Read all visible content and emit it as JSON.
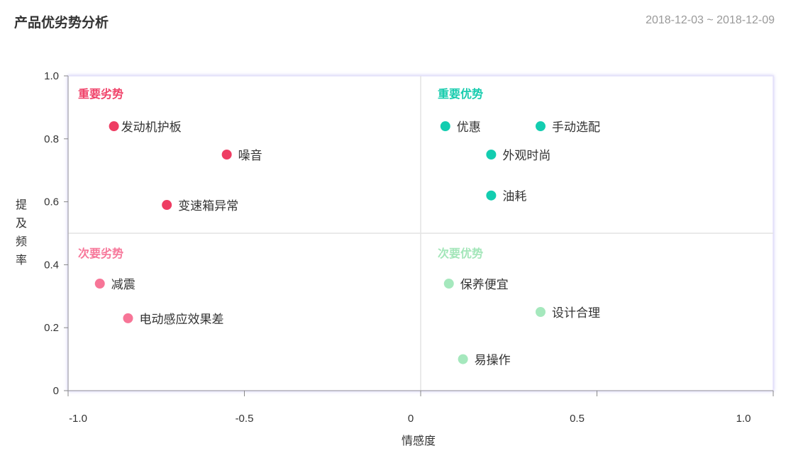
{
  "header": {
    "title": "产品优劣势分析",
    "date_range": "2018-12-03 ~ 2018-12-09"
  },
  "chart_data": {
    "type": "scatter",
    "title": "产品优劣势分析",
    "xlabel": "情感度",
    "ylabel": "提及频率",
    "xlim": [
      -1.0,
      1.0
    ],
    "ylim": [
      0,
      1.0
    ],
    "x_ticks": [
      "-1.0",
      "-0.5",
      "0",
      "0.5",
      "1.0"
    ],
    "y_ticks": [
      "0",
      "0.2",
      "0.4",
      "0.6",
      "0.8",
      "1.0"
    ],
    "grid": false,
    "quadrant_dividers": {
      "x": 0,
      "y": 0.5
    },
    "quadrants": [
      {
        "name": "重要劣势",
        "color": "#f0436a",
        "position": "top-left"
      },
      {
        "name": "重要优势",
        "color": "#17ccae",
        "position": "top-right"
      },
      {
        "name": "次要劣势",
        "color": "#f7779a",
        "position": "bottom-left"
      },
      {
        "name": "次要优势",
        "color": "#a3e6b9",
        "position": "bottom-right"
      }
    ],
    "points": [
      {
        "label": "发动机护板",
        "x": -0.87,
        "y": 0.84,
        "quadrant": 0
      },
      {
        "label": "噪音",
        "x": -0.55,
        "y": 0.75,
        "quadrant": 0
      },
      {
        "label": "变速箱异常",
        "x": -0.72,
        "y": 0.59,
        "quadrant": 0
      },
      {
        "label": "优惠",
        "x": 0.07,
        "y": 0.84,
        "quadrant": 1
      },
      {
        "label": "手动选配",
        "x": 0.34,
        "y": 0.84,
        "quadrant": 1
      },
      {
        "label": "外观时尚",
        "x": 0.2,
        "y": 0.75,
        "quadrant": 1
      },
      {
        "label": "油耗",
        "x": 0.2,
        "y": 0.62,
        "quadrant": 1
      },
      {
        "label": "减震",
        "x": -0.91,
        "y": 0.34,
        "quadrant": 2
      },
      {
        "label": "电动感应效果差",
        "x": -0.83,
        "y": 0.23,
        "quadrant": 2
      },
      {
        "label": "保养便宜",
        "x": 0.08,
        "y": 0.34,
        "quadrant": 3
      },
      {
        "label": "设计合理",
        "x": 0.34,
        "y": 0.25,
        "quadrant": 3
      },
      {
        "label": "易操作",
        "x": 0.12,
        "y": 0.1,
        "quadrant": 3
      }
    ]
  }
}
